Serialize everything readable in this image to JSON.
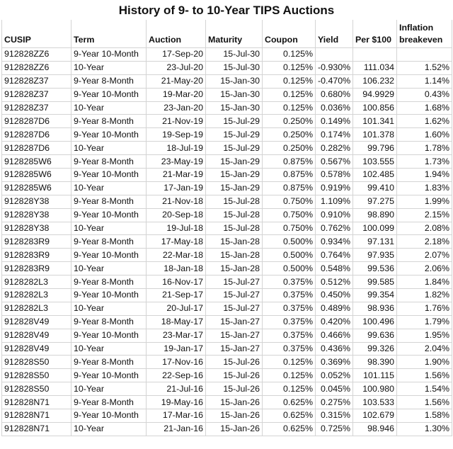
{
  "title": "History of 9- to 10-Year TIPS Auctions",
  "columns": [
    "CUSIP",
    "Term",
    "Auction",
    "Maturity",
    "Coupon",
    "Yield",
    "Per $100",
    "Inflation breakeven"
  ],
  "rows": [
    [
      "912828ZZ6",
      "9-Year 10-Month",
      "17-Sep-20",
      "15-Jul-30",
      "0.125%",
      "",
      "",
      ""
    ],
    [
      "912828ZZ6",
      "10-Year",
      "23-Jul-20",
      "15-Jul-30",
      "0.125%",
      "-0.930%",
      "111.034",
      "1.52%"
    ],
    [
      "912828Z37",
      "9-Year 8-Month",
      "21-May-20",
      "15-Jan-30",
      "0.125%",
      "-0.470%",
      "106.232",
      "1.14%"
    ],
    [
      "912828Z37",
      "9-Year 10-Month",
      "19-Mar-20",
      "15-Jan-30",
      "0.125%",
      "0.680%",
      "94.9929",
      "0.43%"
    ],
    [
      "912828Z37",
      "10-Year",
      "23-Jan-20",
      "15-Jan-30",
      "0.125%",
      "0.036%",
      "100.856",
      "1.68%"
    ],
    [
      "9128287D6",
      "9-Year 8-Month",
      "21-Nov-19",
      "15-Jul-29",
      "0.250%",
      "0.149%",
      "101.341",
      "1.62%"
    ],
    [
      "9128287D6",
      "9-Year 10-Month",
      "19-Sep-19",
      "15-Jul-29",
      "0.250%",
      "0.174%",
      "101.378",
      "1.60%"
    ],
    [
      "9128287D6",
      "10-Year",
      "18-Jul-19",
      "15-Jul-29",
      "0.250%",
      "0.282%",
      "99.796",
      "1.78%"
    ],
    [
      "9128285W6",
      "9-Year 8-Month",
      "23-May-19",
      "15-Jan-29",
      "0.875%",
      "0.567%",
      "103.555",
      "1.73%"
    ],
    [
      "9128285W6",
      "9-Year 10-Month",
      "21-Mar-19",
      "15-Jan-29",
      "0.875%",
      "0.578%",
      "102.485",
      "1.94%"
    ],
    [
      "9128285W6",
      "10-Year",
      "17-Jan-19",
      "15-Jan-29",
      "0.875%",
      "0.919%",
      "99.410",
      "1.83%"
    ],
    [
      "912828Y38",
      "9-Year 8-Month",
      "21-Nov-18",
      "15-Jul-28",
      "0.750%",
      "1.109%",
      "97.275",
      "1.99%"
    ],
    [
      "912828Y38",
      "9-Year 10-Month",
      "20-Sep-18",
      "15-Jul-28",
      "0.750%",
      "0.910%",
      "98.890",
      "2.15%"
    ],
    [
      "912828Y38",
      "10-Year",
      "19-Jul-18",
      "15-Jul-28",
      "0.750%",
      "0.762%",
      "100.099",
      "2.08%"
    ],
    [
      "9128283R9",
      "9-Year 8-Month",
      "17-May-18",
      "15-Jan-28",
      "0.500%",
      "0.934%",
      "97.131",
      "2.18%"
    ],
    [
      "9128283R9",
      "9-Year 10-Month",
      "22-Mar-18",
      "15-Jan-28",
      "0.500%",
      "0.764%",
      "97.935",
      "2.07%"
    ],
    [
      "9128283R9",
      "10-Year",
      "18-Jan-18",
      "15-Jan-28",
      "0.500%",
      "0.548%",
      "99.536",
      "2.06%"
    ],
    [
      "9128282L3",
      "9-Year 8-Month",
      "16-Nov-17",
      "15-Jul-27",
      "0.375%",
      "0.512%",
      "99.585",
      "1.84%"
    ],
    [
      "9128282L3",
      "9-Year 10-Month",
      "21-Sep-17",
      "15-Jul-27",
      "0.375%",
      "0.450%",
      "99.354",
      "1.82%"
    ],
    [
      "9128282L3",
      "10-Year",
      "20-Jul-17",
      "15-Jul-27",
      "0.375%",
      "0.489%",
      "98.936",
      "1.76%"
    ],
    [
      "912828V49",
      "9-Year 8-Month",
      "18-May-17",
      "15-Jan-27",
      "0.375%",
      "0.420%",
      "100.496",
      "1.79%"
    ],
    [
      "912828V49",
      "9-Year 10-Month",
      "23-Mar-17",
      "15-Jan-27",
      "0.375%",
      "0.466%",
      "99.636",
      "1.95%"
    ],
    [
      "912828V49",
      "10-Year",
      "19-Jan-17",
      "15-Jan-27",
      "0.375%",
      "0.436%",
      "99.326",
      "2.04%"
    ],
    [
      "912828S50",
      "9-Year 8-Month",
      "17-Nov-16",
      "15-Jul-26",
      "0.125%",
      "0.369%",
      "98.390",
      "1.90%"
    ],
    [
      "912828S50",
      "9-Year 10-Month",
      "22-Sep-16",
      "15-Jul-26",
      "0.125%",
      "0.052%",
      "101.115",
      "1.56%"
    ],
    [
      "912828S50",
      "10-Year",
      "21-Jul-16",
      "15-Jul-26",
      "0.125%",
      "0.045%",
      "100.980",
      "1.54%"
    ],
    [
      "912828N71",
      "9-Year 8-Month",
      "19-May-16",
      "15-Jan-26",
      "0.625%",
      "0.275%",
      "103.533",
      "1.56%"
    ],
    [
      "912828N71",
      "9-Year 10-Month",
      "17-Mar-16",
      "15-Jan-26",
      "0.625%",
      "0.315%",
      "102.679",
      "1.58%"
    ],
    [
      "912828N71",
      "10-Year",
      "21-Jan-16",
      "15-Jan-26",
      "0.625%",
      "0.725%",
      "98.946",
      "1.30%"
    ]
  ]
}
